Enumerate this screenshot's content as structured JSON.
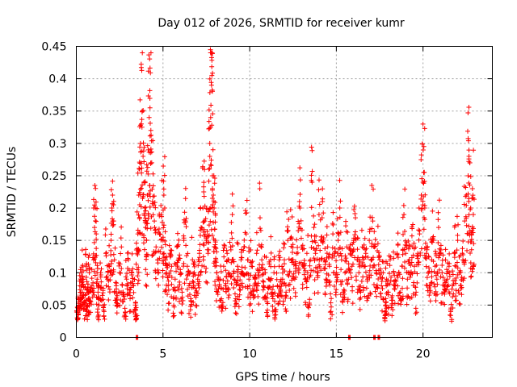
{
  "chart_data": {
    "type": "scatter",
    "title": "Day 012 of 2026, SRMTID for receiver kumr",
    "xlabel": "GPS time / hours",
    "ylabel": "SRMTID / TECUs",
    "xlim": [
      0,
      24
    ],
    "ylim": [
      0,
      0.45
    ],
    "xticks": [
      0,
      5,
      10,
      15,
      20
    ],
    "xtick_labels": [
      "0",
      "5",
      "10",
      "15",
      "20"
    ],
    "yticks": [
      0,
      0.05,
      0.1,
      0.15,
      0.2,
      0.25,
      0.3,
      0.35,
      0.4,
      0.45
    ],
    "ytick_labels": [
      "0",
      "0.05",
      "0.1",
      "0.15",
      "0.2",
      "0.25",
      "0.3",
      "0.35",
      "0.4",
      "0.45"
    ],
    "grid": true,
    "marker": "plus",
    "color": "#ff0000",
    "series": [
      {
        "name": "SRMTID",
        "points": [
          [
            0.05,
            0.03
          ],
          [
            0.1,
            0.06
          ],
          [
            0.15,
            0.045
          ],
          [
            0.2,
            0.08
          ],
          [
            0.25,
            0.055
          ],
          [
            0.3,
            0.1
          ],
          [
            0.35,
            0.07
          ],
          [
            0.4,
            0.09
          ],
          [
            0.45,
            0.05
          ],
          [
            0.5,
            0.065
          ],
          [
            0.55,
            0.11
          ],
          [
            0.6,
            0.04
          ],
          [
            0.65,
            0.075
          ],
          [
            0.7,
            0.06
          ],
          [
            0.75,
            0.1
          ],
          [
            0.8,
            0.055
          ],
          [
            0.9,
            0.08
          ],
          [
            1.0,
            0.12
          ],
          [
            1.05,
            0.17
          ],
          [
            1.1,
            0.2
          ],
          [
            1.15,
            0.16
          ],
          [
            1.2,
            0.09
          ],
          [
            1.25,
            0.07
          ],
          [
            1.3,
            0.05
          ],
          [
            1.4,
            0.1
          ],
          [
            1.5,
            0.065
          ],
          [
            1.6,
            0.04
          ],
          [
            1.7,
            0.13
          ],
          [
            1.8,
            0.09
          ],
          [
            1.9,
            0.11
          ],
          [
            2.0,
            0.15
          ],
          [
            2.05,
            0.2
          ],
          [
            2.1,
            0.18
          ],
          [
            2.2,
            0.12
          ],
          [
            2.3,
            0.08
          ],
          [
            2.4,
            0.05
          ],
          [
            2.5,
            0.1
          ],
          [
            2.6,
            0.14
          ],
          [
            2.7,
            0.07
          ],
          [
            2.8,
            0.045
          ],
          [
            2.9,
            0.09
          ],
          [
            3.0,
            0.12
          ],
          [
            3.1,
            0.06
          ],
          [
            3.2,
            0.1
          ],
          [
            3.3,
            0.08
          ],
          [
            3.4,
            0.05
          ],
          [
            3.45,
            0.03
          ],
          [
            3.5,
            0.13
          ],
          [
            3.55,
            0.16
          ],
          [
            3.6,
            0.22
          ],
          [
            3.65,
            0.26
          ],
          [
            3.7,
            0.3
          ],
          [
            3.75,
            0.33
          ],
          [
            3.8,
            0.35
          ],
          [
            3.85,
            0.28
          ],
          [
            3.9,
            0.24
          ],
          [
            3.95,
            0.2
          ],
          [
            4.0,
            0.17
          ],
          [
            4.05,
            0.15
          ],
          [
            4.1,
            0.22
          ],
          [
            4.15,
            0.29
          ],
          [
            4.2,
            0.34
          ],
          [
            4.25,
            0.355
          ],
          [
            4.3,
            0.32
          ],
          [
            4.35,
            0.27
          ],
          [
            4.4,
            0.21
          ],
          [
            4.5,
            0.18
          ],
          [
            4.6,
            0.14
          ],
          [
            4.7,
            0.12
          ],
          [
            4.8,
            0.16
          ],
          [
            4.9,
            0.19
          ],
          [
            5.0,
            0.15
          ],
          [
            5.05,
            0.22
          ],
          [
            5.1,
            0.2
          ],
          [
            5.15,
            0.12
          ],
          [
            5.2,
            0.1
          ],
          [
            5.3,
            0.08
          ],
          [
            5.4,
            0.13
          ],
          [
            5.5,
            0.11
          ],
          [
            5.6,
            0.06
          ],
          [
            5.7,
            0.09
          ],
          [
            5.8,
            0.14
          ],
          [
            5.9,
            0.12
          ],
          [
            6.0,
            0.1
          ],
          [
            6.1,
            0.07
          ],
          [
            6.2,
            0.15
          ],
          [
            6.3,
            0.18
          ],
          [
            6.4,
            0.11
          ],
          [
            6.5,
            0.08
          ],
          [
            6.6,
            0.06
          ],
          [
            6.7,
            0.12
          ],
          [
            6.8,
            0.1
          ],
          [
            6.9,
            0.07
          ],
          [
            7.0,
            0.09
          ],
          [
            7.1,
            0.13
          ],
          [
            7.2,
            0.17
          ],
          [
            7.3,
            0.2
          ],
          [
            7.35,
            0.225
          ],
          [
            7.4,
            0.18
          ],
          [
            7.5,
            0.15
          ],
          [
            7.6,
            0.13
          ],
          [
            7.65,
            0.26
          ],
          [
            7.7,
            0.28
          ],
          [
            7.75,
            0.34
          ],
          [
            7.8,
            0.39
          ],
          [
            7.82,
            0.405
          ],
          [
            7.85,
            0.25
          ],
          [
            7.9,
            0.22
          ],
          [
            7.95,
            0.2
          ],
          [
            8.0,
            0.15
          ],
          [
            8.05,
            0.12
          ],
          [
            8.1,
            0.1
          ],
          [
            8.2,
            0.075
          ],
          [
            8.3,
            0.09
          ],
          [
            8.4,
            0.05
          ],
          [
            8.5,
            0.11
          ],
          [
            8.6,
            0.08
          ],
          [
            8.7,
            0.13
          ],
          [
            8.8,
            0.1
          ],
          [
            8.9,
            0.14
          ],
          [
            9.0,
            0.19
          ],
          [
            9.1,
            0.09
          ],
          [
            9.2,
            0.06
          ],
          [
            9.3,
            0.11
          ],
          [
            9.4,
            0.08
          ],
          [
            9.5,
            0.12
          ],
          [
            9.6,
            0.1
          ],
          [
            9.7,
            0.14
          ],
          [
            9.8,
            0.16
          ],
          [
            9.9,
            0.12
          ],
          [
            10.0,
            0.08
          ],
          [
            10.1,
            0.11
          ],
          [
            10.2,
            0.065
          ],
          [
            10.3,
            0.09
          ],
          [
            10.4,
            0.13
          ],
          [
            10.5,
            0.1
          ],
          [
            10.6,
            0.185
          ],
          [
            10.7,
            0.12
          ],
          [
            10.8,
            0.08
          ],
          [
            10.9,
            0.1
          ],
          [
            11.0,
            0.055
          ],
          [
            11.1,
            0.09
          ],
          [
            11.2,
            0.12
          ],
          [
            11.3,
            0.07
          ],
          [
            11.4,
            0.1
          ],
          [
            11.5,
            0.035
          ],
          [
            11.6,
            0.08
          ],
          [
            11.7,
            0.11
          ],
          [
            11.8,
            0.065
          ],
          [
            11.9,
            0.09
          ],
          [
            12.0,
            0.12
          ],
          [
            12.1,
            0.07
          ],
          [
            12.2,
            0.15
          ],
          [
            12.3,
            0.1
          ],
          [
            12.4,
            0.155
          ],
          [
            12.5,
            0.12
          ],
          [
            12.6,
            0.09
          ],
          [
            12.7,
            0.13
          ],
          [
            12.8,
            0.165
          ],
          [
            12.9,
            0.2
          ],
          [
            13.0,
            0.14
          ],
          [
            13.1,
            0.11
          ],
          [
            13.2,
            0.09
          ],
          [
            13.3,
            0.13
          ],
          [
            13.4,
            0.046
          ],
          [
            13.5,
            0.12
          ],
          [
            13.6,
            0.24
          ],
          [
            13.7,
            0.17
          ],
          [
            13.8,
            0.13
          ],
          [
            13.9,
            0.1
          ],
          [
            14.0,
            0.19
          ],
          [
            14.1,
            0.15
          ],
          [
            14.2,
            0.21
          ],
          [
            14.3,
            0.12
          ],
          [
            14.4,
            0.09
          ],
          [
            14.5,
            0.14
          ],
          [
            14.6,
            0.11
          ],
          [
            14.7,
            0.047
          ],
          [
            14.8,
            0.16
          ],
          [
            14.9,
            0.13
          ],
          [
            15.0,
            0.1
          ],
          [
            15.1,
            0.15
          ],
          [
            15.2,
            0.2
          ],
          [
            15.3,
            0.12
          ],
          [
            15.4,
            0.07
          ],
          [
            15.5,
            0.1
          ],
          [
            15.6,
            0.14
          ],
          [
            15.7,
            0.09
          ],
          [
            15.8,
            0.13
          ],
          [
            15.9,
            0.11
          ],
          [
            16.0,
            0.15
          ],
          [
            16.1,
            0.185
          ],
          [
            16.2,
            0.12
          ],
          [
            16.3,
            0.1
          ],
          [
            16.4,
            0.07
          ],
          [
            16.5,
            0.14
          ],
          [
            16.6,
            0.11
          ],
          [
            16.7,
            0.13
          ],
          [
            16.8,
            0.09
          ],
          [
            16.9,
            0.15
          ],
          [
            17.0,
            0.12
          ],
          [
            17.1,
            0.18
          ],
          [
            17.2,
            0.14
          ],
          [
            17.3,
            0.1
          ],
          [
            17.4,
            0.145
          ],
          [
            17.5,
            0.12
          ],
          [
            17.6,
            0.08
          ],
          [
            17.7,
            0.1
          ],
          [
            17.8,
            0.03
          ],
          [
            17.85,
            0.06
          ],
          [
            17.9,
            0.09
          ],
          [
            18.0,
            0.07
          ],
          [
            18.1,
            0.12
          ],
          [
            18.2,
            0.05
          ],
          [
            18.3,
            0.1
          ],
          [
            18.4,
            0.08
          ],
          [
            18.5,
            0.13
          ],
          [
            18.6,
            0.1
          ],
          [
            18.7,
            0.06
          ],
          [
            18.8,
            0.11
          ],
          [
            18.9,
            0.19
          ],
          [
            19.0,
            0.13
          ],
          [
            19.1,
            0.09
          ],
          [
            19.2,
            0.12
          ],
          [
            19.3,
            0.1
          ],
          [
            19.4,
            0.14
          ],
          [
            19.5,
            0.11
          ],
          [
            19.6,
            0.07
          ],
          [
            19.7,
            0.13
          ],
          [
            19.8,
            0.16
          ],
          [
            19.9,
            0.22
          ],
          [
            20.0,
            0.24
          ],
          [
            20.05,
            0.255
          ],
          [
            20.1,
            0.2
          ],
          [
            20.2,
            0.13
          ],
          [
            20.3,
            0.1
          ],
          [
            20.4,
            0.08
          ],
          [
            20.5,
            0.12
          ],
          [
            20.6,
            0.15
          ],
          [
            20.7,
            0.11
          ],
          [
            20.8,
            0.09
          ],
          [
            20.9,
            0.17
          ],
          [
            21.0,
            0.13
          ],
          [
            21.1,
            0.1
          ],
          [
            21.2,
            0.07
          ],
          [
            21.3,
            0.12
          ],
          [
            21.4,
            0.09
          ],
          [
            21.5,
            0.11
          ],
          [
            21.6,
            0.04
          ],
          [
            21.7,
            0.08
          ],
          [
            21.8,
            0.13
          ],
          [
            21.9,
            0.11
          ],
          [
            22.0,
            0.15
          ],
          [
            22.1,
            0.1
          ],
          [
            22.2,
            0.08
          ],
          [
            22.3,
            0.12
          ],
          [
            22.4,
            0.18
          ],
          [
            22.5,
            0.22
          ],
          [
            22.6,
            0.25
          ],
          [
            22.65,
            0.28
          ],
          [
            22.7,
            0.27
          ],
          [
            22.75,
            0.2
          ],
          [
            22.8,
            0.16
          ],
          [
            22.85,
            0.23
          ],
          [
            22.9,
            0.19
          ]
        ]
      }
    ],
    "zero_markers_x": [
      3.5,
      15.75,
      17.2,
      17.45
    ]
  }
}
